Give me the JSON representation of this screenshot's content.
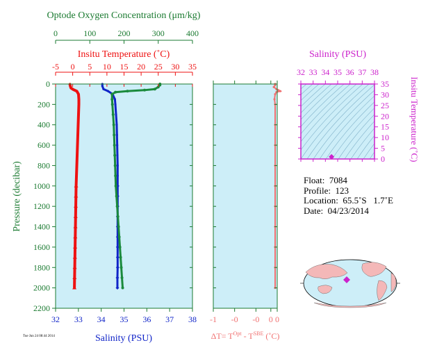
{
  "colors": {
    "oxygen": "#1a8a3c",
    "temperature": "#ee1111",
    "salinity": "#1024c8",
    "delta_t": "#f07070",
    "ts_frame": "#cc22cc",
    "plot_bg": "#cdeef8",
    "axis_green": "#1a7a30"
  },
  "chart_data": [
    {
      "type": "line",
      "name": "profile",
      "xlabel_top_oxygen": "Optode Oxygen Concentration (μm/kg)",
      "xlabel_top_temperature": "Insitu Temperature (˚C)",
      "xlabel_bottom": "Salinity (PSU)",
      "ylabel": "Pressure (decibar)",
      "oxygen_axis": {
        "range": [
          0,
          400
        ],
        "ticks": [
          "0",
          "100",
          "200",
          "300",
          "400"
        ]
      },
      "temperature_axis": {
        "range": [
          -5,
          35
        ],
        "ticks": [
          "-5",
          "0",
          "5",
          "10",
          "15",
          "20",
          "25",
          "30",
          "35"
        ]
      },
      "salinity_axis": {
        "range": [
          32,
          38
        ],
        "ticks": [
          "32",
          "33",
          "34",
          "35",
          "36",
          "37",
          "38"
        ]
      },
      "pressure_axis": {
        "range": [
          0,
          2200
        ],
        "ticks": [
          "0",
          "200",
          "400",
          "600",
          "800",
          "1000",
          "1200",
          "1400",
          "1600",
          "1800",
          "2000",
          "2200"
        ]
      },
      "series": [
        {
          "key": "temperature",
          "axis": "temperature",
          "points": [
            [
              -0.8,
              0
            ],
            [
              -0.8,
              5
            ],
            [
              -0.7,
              20
            ],
            [
              -0.5,
              40
            ],
            [
              0.2,
              55
            ],
            [
              1.2,
              70
            ],
            [
              1.7,
              100
            ],
            [
              1.8,
              150
            ],
            [
              1.8,
              200
            ],
            [
              1.7,
              300
            ],
            [
              1.6,
              400
            ],
            [
              1.5,
              500
            ],
            [
              1.4,
              600
            ],
            [
              1.3,
              700
            ],
            [
              1.2,
              800
            ],
            [
              1.1,
              900
            ],
            [
              1.0,
              1000
            ],
            [
              0.95,
              1100
            ],
            [
              0.9,
              1200
            ],
            [
              0.85,
              1300
            ],
            [
              0.8,
              1400
            ],
            [
              0.75,
              1500
            ],
            [
              0.7,
              1600
            ],
            [
              0.65,
              1700
            ],
            [
              0.6,
              1800
            ],
            [
              0.55,
              1900
            ],
            [
              0.5,
              2000
            ]
          ]
        },
        {
          "key": "salinity",
          "axis": "salinity",
          "points": [
            [
              34.05,
              0
            ],
            [
              34.05,
              20
            ],
            [
              34.1,
              50
            ],
            [
              34.3,
              70
            ],
            [
              34.5,
              100
            ],
            [
              34.6,
              150
            ],
            [
              34.62,
              200
            ],
            [
              34.65,
              300
            ],
            [
              34.68,
              400
            ],
            [
              34.69,
              500
            ],
            [
              34.7,
              600
            ],
            [
              34.71,
              700
            ],
            [
              34.72,
              800
            ],
            [
              34.72,
              900
            ],
            [
              34.72,
              1000
            ],
            [
              34.72,
              1100
            ],
            [
              34.72,
              1200
            ],
            [
              34.72,
              1300
            ],
            [
              34.72,
              1400
            ],
            [
              34.72,
              1500
            ],
            [
              34.72,
              1600
            ],
            [
              34.72,
              1700
            ],
            [
              34.72,
              1800
            ],
            [
              34.71,
              1900
            ],
            [
              34.71,
              2000
            ]
          ]
        },
        {
          "key": "oxygen",
          "axis": "oxygen",
          "points": [
            [
              305,
              0
            ],
            [
              305,
              10
            ],
            [
              300,
              30
            ],
            [
              290,
              50
            ],
            [
              260,
              60
            ],
            [
              210,
              70
            ],
            [
              175,
              80
            ],
            [
              165,
              100
            ],
            [
              165,
              150
            ],
            [
              166,
              200
            ],
            [
              168,
              300
            ],
            [
              170,
              400
            ],
            [
              171,
              500
            ],
            [
              172,
              600
            ],
            [
              173,
              700
            ],
            [
              174,
              800
            ],
            [
              175,
              900
            ],
            [
              176,
              1000
            ],
            [
              178,
              1100
            ],
            [
              180,
              1200
            ],
            [
              182,
              1300
            ],
            [
              184,
              1400
            ],
            [
              186,
              1500
            ],
            [
              188,
              1600
            ],
            [
              190,
              1700
            ],
            [
              192,
              1800
            ],
            [
              194,
              1900
            ],
            [
              196,
              2000
            ]
          ]
        }
      ]
    },
    {
      "type": "line",
      "name": "delta_t",
      "xlabel": "ΔT= T^Opt - T^SBE (˚C)",
      "xlabel_parts": [
        "ΔT= T",
        "Opt",
        " - T",
        "SBE",
        " (˚C)"
      ],
      "x_axis": {
        "range": [
          -1,
          0
        ],
        "ticks": [
          "-1",
          "-0",
          "-0",
          "0",
          "0"
        ]
      },
      "points": [
        [
          0.0,
          0
        ],
        [
          0.0,
          10
        ],
        [
          -0.02,
          30
        ],
        [
          0.02,
          50
        ],
        [
          0.05,
          60
        ],
        [
          0.08,
          70
        ],
        [
          0.02,
          80
        ],
        [
          0.0,
          100
        ],
        [
          -0.01,
          150
        ],
        [
          0.0,
          200
        ],
        [
          0.0,
          400
        ],
        [
          0.0,
          600
        ],
        [
          0.0,
          800
        ],
        [
          0.0,
          1000
        ],
        [
          0.0,
          1200
        ],
        [
          0.0,
          1400
        ],
        [
          0.0,
          1600
        ],
        [
          0.0,
          1800
        ],
        [
          0.0,
          2000
        ]
      ]
    },
    {
      "type": "scatter",
      "name": "ts_diagram",
      "title": "Salinity (PSU)",
      "ylabel": "Insitu Temperature (˚C)",
      "x_axis": {
        "range": [
          32,
          38
        ],
        "ticks": [
          "32",
          "33",
          "34",
          "35",
          "36",
          "37",
          "38"
        ]
      },
      "y_axis": {
        "range": [
          0,
          35
        ],
        "ticks": [
          "0",
          "5",
          "10",
          "15",
          "20",
          "25",
          "30",
          "35"
        ]
      },
      "points": [
        [
          34.5,
          1.0
        ]
      ]
    }
  ],
  "info": {
    "float": "Float:  7084",
    "profile": "Profile:  123",
    "location": "Location:  65.5˚S   1.7˚E",
    "date": "Date:  04/23/2014"
  },
  "map": {
    "icon": "world-map-icon",
    "marker": {
      "lon": 1.7,
      "lat": -65.5
    }
  },
  "footnote": "Tue Jun 24 08:44 2014"
}
